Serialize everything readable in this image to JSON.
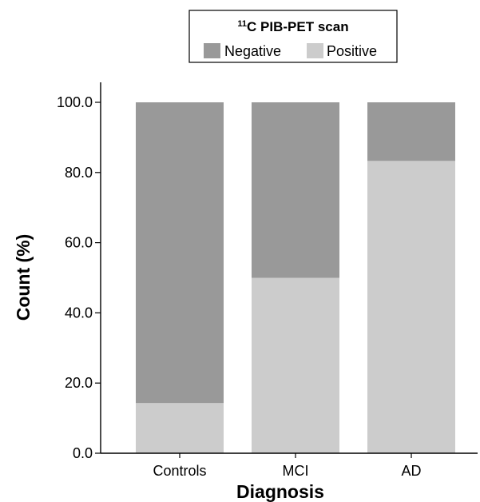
{
  "chart_data": {
    "type": "bar",
    "stacked": true,
    "percent_stacked": true,
    "categories": [
      "Controls",
      "MCI",
      "AD"
    ],
    "series": [
      {
        "name": "Positive",
        "color": "#cccccc",
        "values": [
          14.3,
          50.0,
          83.3
        ]
      },
      {
        "name": "Negative",
        "color": "#999999",
        "values": [
          85.7,
          50.0,
          16.7
        ]
      }
    ],
    "xlabel": "Diagnosis",
    "ylabel": "Count (%)",
    "ylim": [
      0,
      100
    ],
    "yticks": [
      "0.0",
      "20.0",
      "40.0",
      "60.0",
      "80.0",
      "100.0"
    ],
    "legend": {
      "title_sup": "11",
      "title_main": "C PIB-PET scan",
      "placement": "top-center",
      "order": [
        "Negative",
        "Positive"
      ]
    },
    "grid": false
  }
}
